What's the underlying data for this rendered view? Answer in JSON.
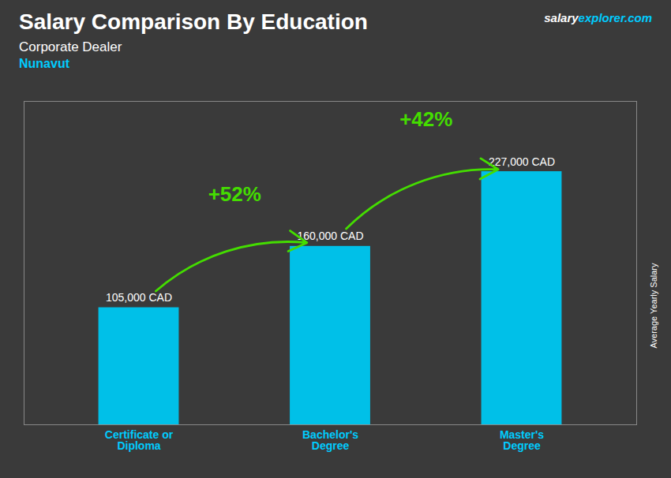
{
  "chart_data": {
    "type": "bar",
    "title": "Salary Comparison By Education",
    "subtitle": [
      "Corporate Dealer",
      "Nunavut"
    ],
    "ylabel": "Average Yearly Salary",
    "categories": [
      "Certificate or\nDiploma",
      "Bachelor's\nDegree",
      "Master's\nDegree"
    ],
    "values": [
      105000,
      160000,
      227000
    ],
    "value_labels": [
      "105,000 CAD",
      "160,000 CAD",
      "227,000 CAD"
    ],
    "data_labels": true,
    "color": "#00c0e8",
    "ylim": [
      0,
      290000
    ],
    "tick_labels": "x",
    "grid": false,
    "annotations": [
      {
        "text": "+52%",
        "from": "Certificate or\nDiploma",
        "to": "Bachelor's\nDegree",
        "color": "#44dd00"
      },
      {
        "text": "+42%",
        "from": "Bachelor's\nDegree",
        "to": "Master's\nDegree",
        "color": "#44dd00"
      },
      {
        "text": "salary",
        "color": "#ffffff"
      },
      {
        "text": "explorer.com",
        "color": "#00ccff"
      }
    ]
  }
}
